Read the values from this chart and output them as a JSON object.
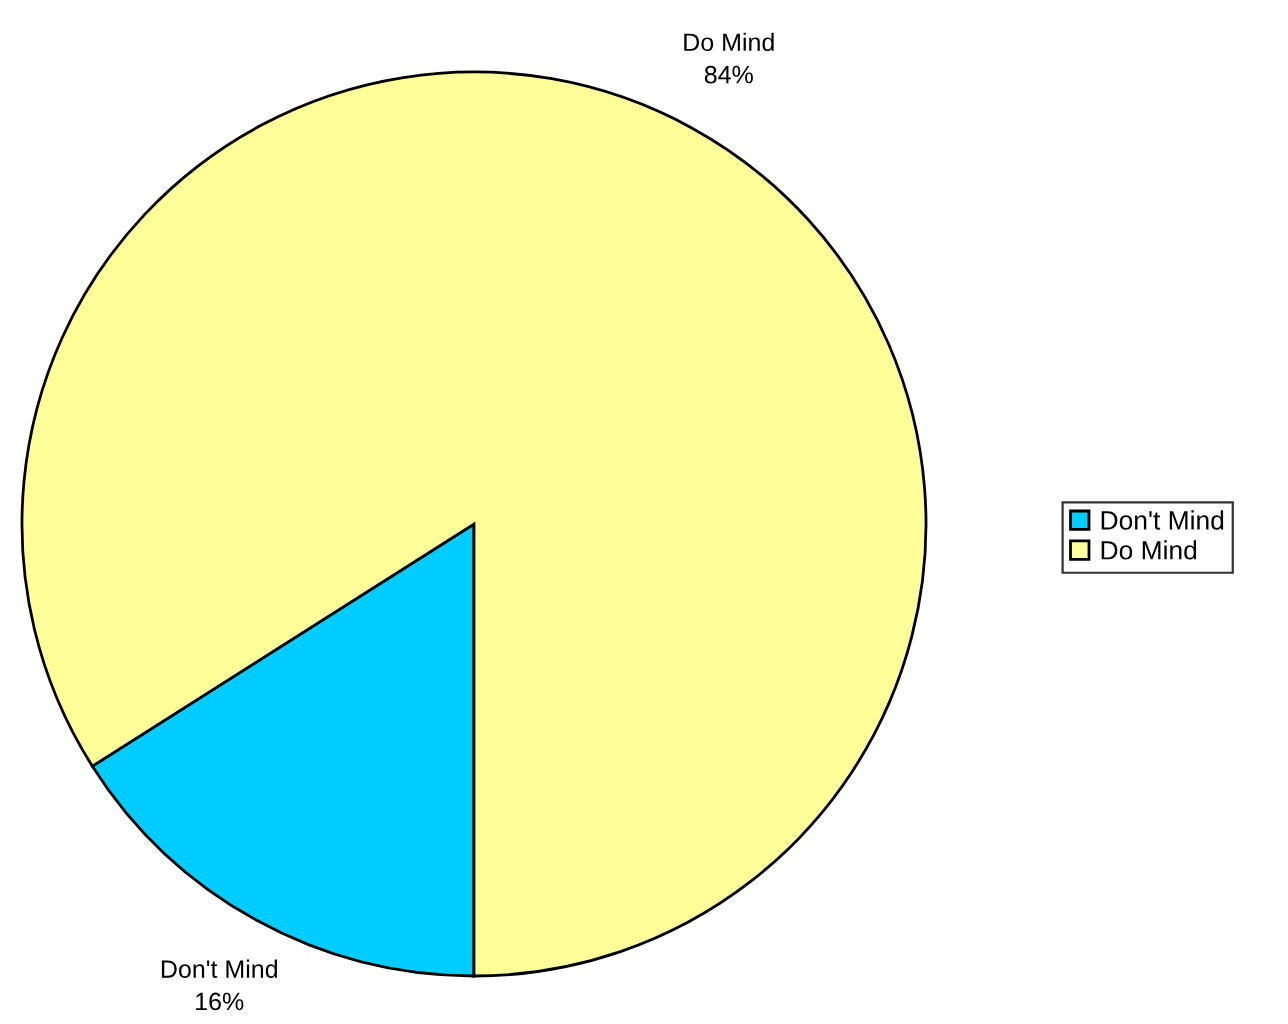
{
  "chart_data": {
    "type": "pie",
    "categories": [
      "Don't Mind",
      "Do Mind"
    ],
    "values": [
      16,
      84
    ],
    "colors": [
      "#00ccff",
      "#ffff99"
    ],
    "value_labels": [
      "16%",
      "84%"
    ],
    "legend": "right"
  }
}
